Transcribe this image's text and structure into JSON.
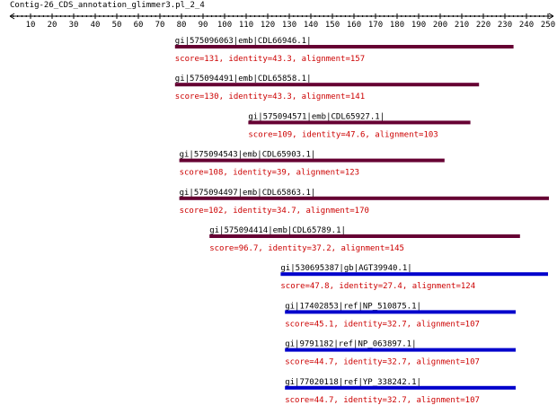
{
  "contig_title": "Contig-26_CDS_annotation_glimmer3.pl_2_4",
  "colors": {
    "axis": "#000000",
    "label": "#000000",
    "score_text": "#cc0000",
    "hit_strong": "#660033",
    "hit_weak": "#0000cc"
  },
  "chart_data": {
    "type": "alignment-track",
    "x_axis": {
      "min": 0,
      "max": 250,
      "ticks": [
        10,
        20,
        30,
        40,
        50,
        60,
        70,
        80,
        90,
        100,
        110,
        120,
        130,
        140,
        150,
        160,
        170,
        180,
        190,
        200,
        210,
        220,
        230,
        240,
        250
      ],
      "tick_labels": [
        "10",
        "20",
        "30",
        "40",
        "50",
        "60",
        "70",
        "80",
        "90",
        "100",
        "110",
        "120",
        "130",
        "140",
        "150",
        "160",
        "170",
        "180",
        "190",
        "200",
        "210",
        "220",
        "230",
        "240",
        "250"
      ]
    },
    "hits": [
      {
        "label": "gi|575096063|emb|CDL66946.1|",
        "score_text": "score=131, identity=43.3, alignment=157",
        "start": 77,
        "end": 234,
        "color": "#660033"
      },
      {
        "label": "gi|575094491|emb|CDL65858.1|",
        "score_text": "score=130, identity=43.3, alignment=141",
        "start": 77,
        "end": 218,
        "color": "#660033"
      },
      {
        "label": "gi|575094571|emb|CDL65927.1|",
        "score_text": "score=109, identity=47.6, alignment=103",
        "start": 111,
        "end": 214,
        "color": "#660033"
      },
      {
        "label": "gi|575094543|emb|CDL65903.1|",
        "score_text": "score=108, identity=39, alignment=123",
        "start": 79,
        "end": 202,
        "color": "#660033"
      },
      {
        "label": "gi|575094497|emb|CDL65863.1|",
        "score_text": "score=102, identity=34.7, alignment=170",
        "start": 79,
        "end": 251,
        "color": "#660033"
      },
      {
        "label": "gi|575094414|emb|CDL65789.1|",
        "score_text": "score=96.7, identity=37.2, alignment=145",
        "start": 93,
        "end": 237,
        "color": "#660033"
      },
      {
        "label": "gi|530695387|gb|AGT39940.1|",
        "score_text": "score=47.8, identity=27.4, alignment=124",
        "start": 126,
        "end": 250,
        "color": "#0000cc"
      },
      {
        "label": "gi|17402853|ref|NP_510875.1|",
        "score_text": "score=45.1, identity=32.7, alignment=107",
        "start": 128,
        "end": 235,
        "color": "#0000cc"
      },
      {
        "label": "gi|9791182|ref|NP_063897.1|",
        "score_text": "score=44.7, identity=32.7, alignment=107",
        "start": 128,
        "end": 235,
        "color": "#0000cc"
      },
      {
        "label": "gi|77020118|ref|YP_338242.1|",
        "score_text": "score=44.7, identity=32.7, alignment=107",
        "start": 128,
        "end": 235,
        "color": "#0000cc"
      }
    ]
  }
}
